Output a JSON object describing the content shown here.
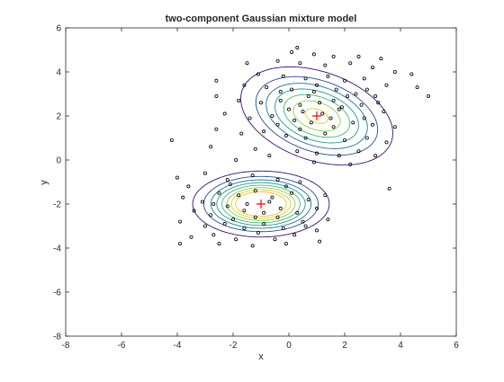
{
  "chart_data": {
    "type": "scatter",
    "title": "two-component Gaussian mixture model",
    "xlabel": "x",
    "ylabel": "y",
    "xlim": [
      -8,
      6
    ],
    "ylim": [
      -8,
      6
    ],
    "xticks": [
      -8,
      -6,
      -4,
      -2,
      0,
      2,
      4,
      6
    ],
    "yticks": [
      -8,
      -6,
      -4,
      -2,
      0,
      2,
      4,
      6
    ],
    "grid": false,
    "legend": "none",
    "colors": {
      "points": "#000000",
      "centers": "#ff0000",
      "contours": [
        "#3b0f70",
        "#2c4a8f",
        "#21739d",
        "#1f9a8a",
        "#45b872",
        "#8fcf4a",
        "#d6d232",
        "#f2c02a"
      ]
    },
    "components": [
      {
        "mean": [
          1,
          2
        ],
        "std": [
          1.1,
          0.9
        ],
        "rho": -0.35
      },
      {
        "mean": [
          -1,
          -2
        ],
        "std": [
          0.9,
          0.55
        ],
        "rho": 0.0
      }
    ],
    "centers": [
      {
        "x": 1,
        "y": 2
      },
      {
        "x": -1,
        "y": -2
      }
    ],
    "points": [
      {
        "x": 0.3,
        "y": 5.1
      },
      {
        "x": 0.1,
        "y": 4.9
      },
      {
        "x": 0.9,
        "y": 4.8
      },
      {
        "x": 1.6,
        "y": 4.7
      },
      {
        "x": 2.5,
        "y": 4.7
      },
      {
        "x": 3.3,
        "y": 4.6
      },
      {
        "x": -1.5,
        "y": 4.4
      },
      {
        "x": -0.4,
        "y": 4.5
      },
      {
        "x": 0.4,
        "y": 4.4
      },
      {
        "x": 1.3,
        "y": 4.3
      },
      {
        "x": 2.2,
        "y": 4.4
      },
      {
        "x": 3.0,
        "y": 4.2
      },
      {
        "x": 3.8,
        "y": 4.0
      },
      {
        "x": 4.4,
        "y": 3.9
      },
      {
        "x": -1.1,
        "y": 3.9
      },
      {
        "x": -0.2,
        "y": 3.8
      },
      {
        "x": 0.6,
        "y": 3.7
      },
      {
        "x": 1.4,
        "y": 3.8
      },
      {
        "x": 2.0,
        "y": 3.6
      },
      {
        "x": 2.7,
        "y": 3.7
      },
      {
        "x": 3.5,
        "y": 3.4
      },
      {
        "x": -2.6,
        "y": 3.6
      },
      {
        "x": -1.6,
        "y": 3.4
      },
      {
        "x": -0.8,
        "y": 3.3
      },
      {
        "x": 0.1,
        "y": 3.2
      },
      {
        "x": 0.9,
        "y": 3.1
      },
      {
        "x": 1.7,
        "y": 3.2
      },
      {
        "x": 2.4,
        "y": 3.0
      },
      {
        "x": 3.1,
        "y": 2.9
      },
      {
        "x": 4.6,
        "y": 3.3
      },
      {
        "x": -2.6,
        "y": 2.9
      },
      {
        "x": -1.8,
        "y": 2.7
      },
      {
        "x": -1.0,
        "y": 2.6
      },
      {
        "x": -0.3,
        "y": 2.7
      },
      {
        "x": 0.4,
        "y": 2.5
      },
      {
        "x": 1.1,
        "y": 2.6
      },
      {
        "x": 1.9,
        "y": 2.4
      },
      {
        "x": 2.6,
        "y": 2.5
      },
      {
        "x": 3.4,
        "y": 2.2
      },
      {
        "x": 5.0,
        "y": 2.9
      },
      {
        "x": -2.3,
        "y": 2.1
      },
      {
        "x": -1.4,
        "y": 1.9
      },
      {
        "x": -0.6,
        "y": 2.0
      },
      {
        "x": 0.2,
        "y": 1.8
      },
      {
        "x": 0.8,
        "y": 1.7
      },
      {
        "x": 1.5,
        "y": 1.9
      },
      {
        "x": 2.3,
        "y": 1.7
      },
      {
        "x": 3.0,
        "y": 1.6
      },
      {
        "x": 3.8,
        "y": 1.5
      },
      {
        "x": -2.6,
        "y": 1.4
      },
      {
        "x": -1.7,
        "y": 1.2
      },
      {
        "x": -0.9,
        "y": 1.3
      },
      {
        "x": -0.1,
        "y": 1.1
      },
      {
        "x": 0.6,
        "y": 1.0
      },
      {
        "x": 1.3,
        "y": 1.2
      },
      {
        "x": 2.0,
        "y": 0.9
      },
      {
        "x": 2.8,
        "y": 1.0
      },
      {
        "x": 3.5,
        "y": 0.8
      },
      {
        "x": -4.2,
        "y": 0.9
      },
      {
        "x": -2.8,
        "y": 0.6
      },
      {
        "x": -1.2,
        "y": 0.5
      },
      {
        "x": 0.3,
        "y": 0.4
      },
      {
        "x": 1.0,
        "y": 0.3
      },
      {
        "x": 1.8,
        "y": 0.2
      },
      {
        "x": 2.5,
        "y": 0.4
      },
      {
        "x": 3.1,
        "y": 0.2
      },
      {
        "x": -0.7,
        "y": 0.2
      },
      {
        "x": 0.9,
        "y": -0.1
      },
      {
        "x": -1.9,
        "y": 0.0
      },
      {
        "x": 2.2,
        "y": -0.2
      },
      {
        "x": 0.5,
        "y": 2.2
      },
      {
        "x": 1.2,
        "y": 2.1
      },
      {
        "x": 1.8,
        "y": 2.3
      },
      {
        "x": 0.7,
        "y": 2.9
      },
      {
        "x": 1.6,
        "y": 2.7
      },
      {
        "x": 0.0,
        "y": 2.3
      },
      {
        "x": 2.1,
        "y": 2.9
      },
      {
        "x": 0.4,
        "y": 1.4
      },
      {
        "x": 1.6,
        "y": 1.5
      },
      {
        "x": 2.7,
        "y": 1.9
      },
      {
        "x": -0.4,
        "y": 1.6
      },
      {
        "x": 1.0,
        "y": 3.4
      },
      {
        "x": 2.8,
        "y": 3.2
      },
      {
        "x": -0.3,
        "y": 3.1
      },
      {
        "x": 3.2,
        "y": 2.6
      },
      {
        "x": -4.0,
        "y": -0.8
      },
      {
        "x": -3.6,
        "y": -1.2
      },
      {
        "x": -3.0,
        "y": -0.6
      },
      {
        "x": -2.2,
        "y": -0.9
      },
      {
        "x": -1.3,
        "y": -0.7
      },
      {
        "x": -0.4,
        "y": -0.9
      },
      {
        "x": 0.4,
        "y": -1.0
      },
      {
        "x": -3.8,
        "y": -1.7
      },
      {
        "x": -3.1,
        "y": -1.9
      },
      {
        "x": -2.5,
        "y": -1.5
      },
      {
        "x": -1.8,
        "y": -1.6
      },
      {
        "x": -1.2,
        "y": -1.4
      },
      {
        "x": -0.6,
        "y": -1.7
      },
      {
        "x": 0.1,
        "y": -1.5
      },
      {
        "x": 0.7,
        "y": -1.8
      },
      {
        "x": 1.3,
        "y": -1.6
      },
      {
        "x": -3.4,
        "y": -2.3
      },
      {
        "x": -2.8,
        "y": -2.5
      },
      {
        "x": -2.2,
        "y": -2.1
      },
      {
        "x": -1.6,
        "y": -2.3
      },
      {
        "x": -0.9,
        "y": -2.4
      },
      {
        "x": -0.3,
        "y": -2.2
      },
      {
        "x": 0.3,
        "y": -2.4
      },
      {
        "x": 1.0,
        "y": -2.2
      },
      {
        "x": -3.9,
        "y": -2.8
      },
      {
        "x": -3.0,
        "y": -3.0
      },
      {
        "x": -2.3,
        "y": -2.9
      },
      {
        "x": -1.6,
        "y": -3.1
      },
      {
        "x": -0.9,
        "y": -2.9
      },
      {
        "x": -0.2,
        "y": -3.1
      },
      {
        "x": 0.5,
        "y": -2.8
      },
      {
        "x": 1.4,
        "y": -2.7
      },
      {
        "x": -3.5,
        "y": -3.5
      },
      {
        "x": -2.7,
        "y": -3.4
      },
      {
        "x": -1.9,
        "y": -3.6
      },
      {
        "x": -1.1,
        "y": -3.3
      },
      {
        "x": -0.5,
        "y": -3.6
      },
      {
        "x": 0.2,
        "y": -3.4
      },
      {
        "x": 1.0,
        "y": -3.2
      },
      {
        "x": -3.9,
        "y": -3.8
      },
      {
        "x": -2.5,
        "y": -3.8
      },
      {
        "x": -1.3,
        "y": -3.9
      },
      {
        "x": -0.1,
        "y": -3.8
      },
      {
        "x": 1.1,
        "y": -3.7
      },
      {
        "x": -1.5,
        "y": -2.0
      },
      {
        "x": -0.7,
        "y": -1.9
      },
      {
        "x": -1.2,
        "y": -2.6
      },
      {
        "x": -0.4,
        "y": -2.6
      },
      {
        "x": -2.0,
        "y": -2.7
      },
      {
        "x": 3.6,
        "y": -1.3
      },
      {
        "x": -2.1,
        "y": -1.1
      },
      {
        "x": -0.1,
        "y": -1.2
      },
      {
        "x": -2.7,
        "y": -2.0
      },
      {
        "x": 0.6,
        "y": -3.0
      }
    ]
  }
}
